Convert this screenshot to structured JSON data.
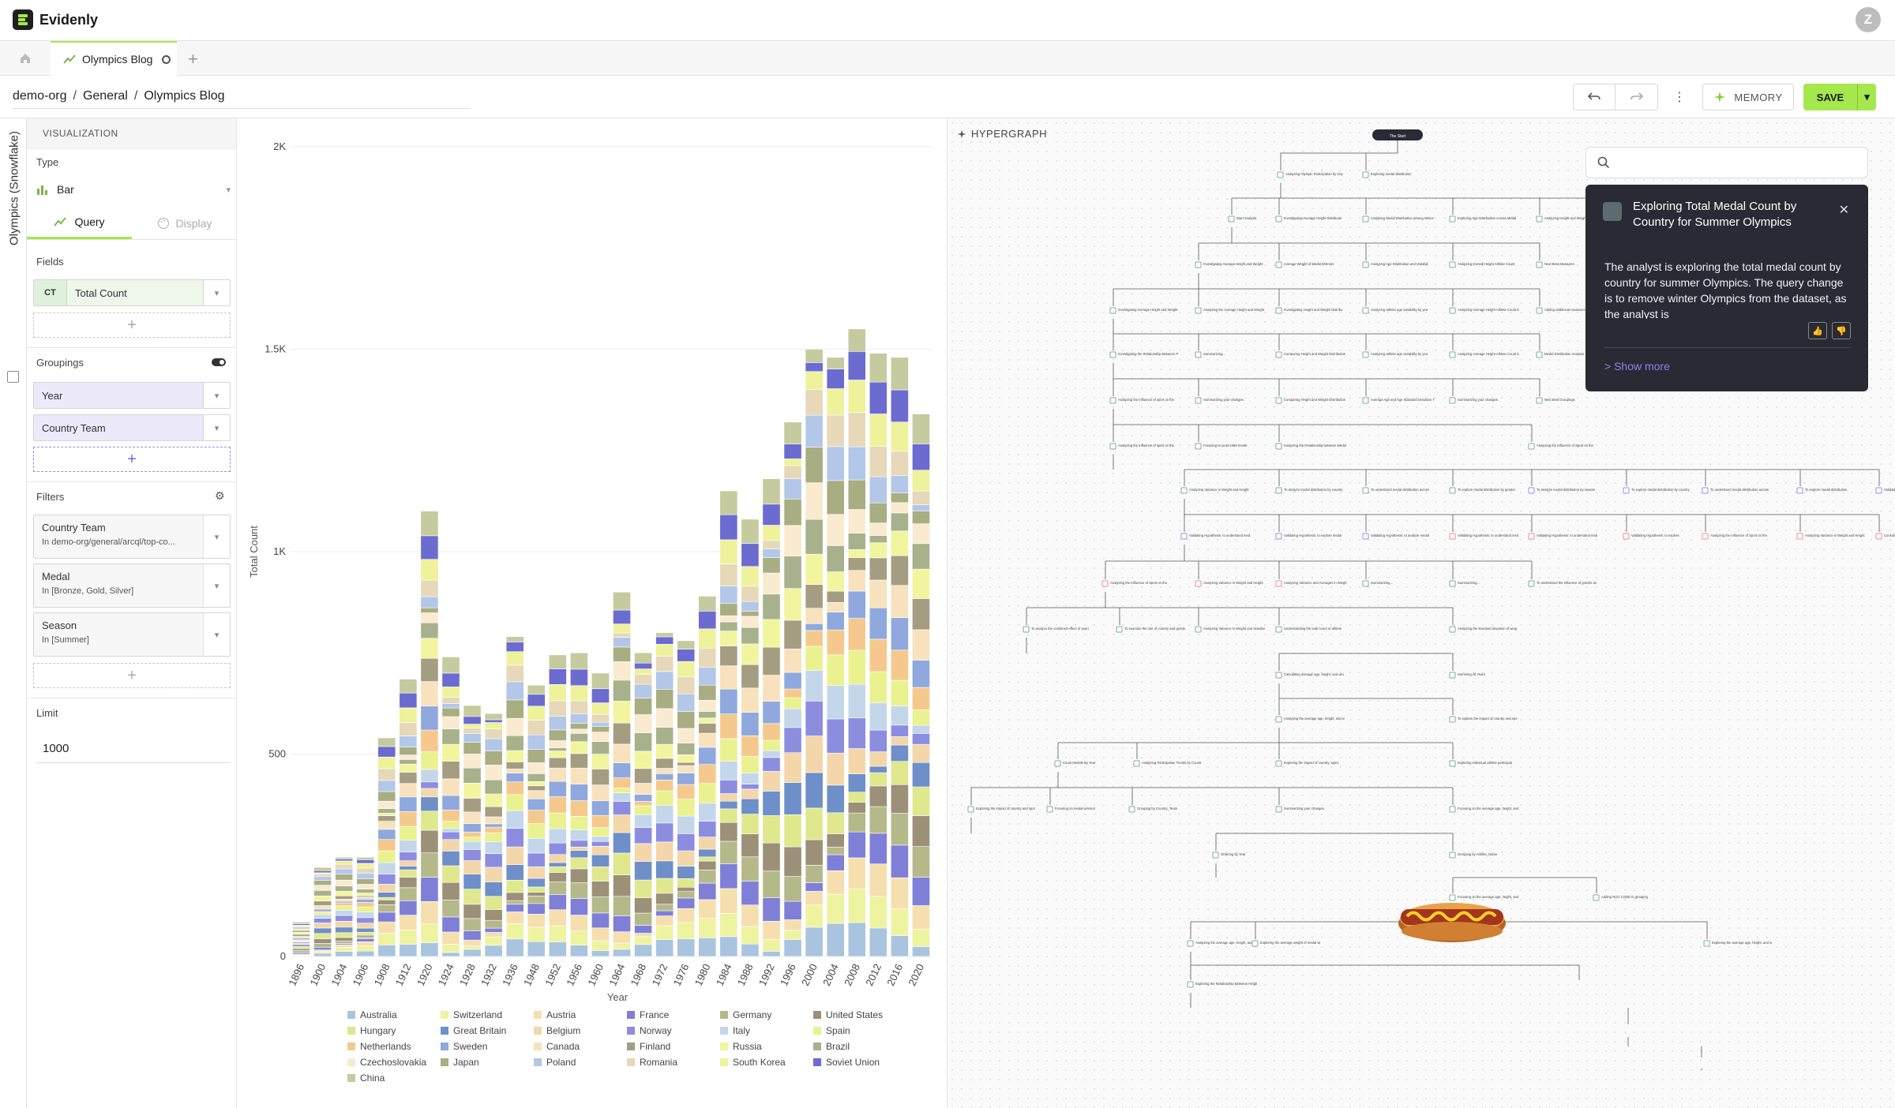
{
  "app": {
    "name": "Evidenly",
    "user_initial": "Z"
  },
  "tabs": [
    {
      "label": "Olympics Blog"
    }
  ],
  "breadcrumb": [
    "demo-org",
    "General",
    "Olympics Blog"
  ],
  "toolbar": {
    "memory_label": "MEMORY",
    "save_label": "SAVE"
  },
  "rail": {
    "label": "Olympics (Snowflake)"
  },
  "panel": {
    "section": "VISUALIZATION",
    "type_label": "Type",
    "type_value": "Bar",
    "query_tab": "Query",
    "display_tab": "Display",
    "fields_label": "Fields",
    "field_badge": "CT",
    "field_value": "Total Count",
    "groupings_label": "Groupings",
    "groupings": [
      "Year",
      "Country Team"
    ],
    "filters_label": "Filters",
    "filters": [
      {
        "name": "Country Team",
        "value": "In demo-org/general/arcql/top-co..."
      },
      {
        "name": "Medal",
        "value": "In [Bronze, Gold, Silver]"
      },
      {
        "name": "Season",
        "value": "In [Summer]"
      }
    ],
    "limit_label": "Limit",
    "limit_value": "1000"
  },
  "hypergraph": {
    "title": "HYPERGRAPH",
    "card_title": "Exploring Total Medal Count by Country for Summer Olympics",
    "card_text": "The analyst is exploring the total medal count by country for summer Olympics. The query change is to remove winter Olympics from the dataset, as the analyst is",
    "show_more": "> Show more",
    "root_label": "The Start",
    "nodes": [
      "Analyzing Olympic Participation by City",
      "Exploring medal distribution",
      "Start Analysis",
      "Investigating Average Height Distribution Across Medal",
      "Analyzing Medal Distribution among Winners",
      "Exploring Age Distribution Across Medal Types",
      "Analyzing Height and Weight Performance",
      "Medal Distribution Analysis",
      "Investigating Average Height and Weight Distribution Across",
      "Average Weight of Medal Winners",
      "Analyzing Age Distribution and Variability Across Medal Types",
      "Analyzing Overall Height Athlete Count",
      "Next Best Measures",
      "Investigating Average Height and Weight Distribution Across",
      "Analyzing the Average Height and Weight of All Athletes",
      "Investigating Height and Weight Distribution in Tug Of",
      "Analyzing athlete age variability by year and medal category",
      "Analyzing Average Height Athlete Count by Medal",
      "Adding additional measures",
      "Investigating the Relationship Between Physical Attributes",
      "Summarizing...",
      "Comparing Height and Weight Distribution in 3x3 Basketball",
      "Analyzing athlete age variability by year and medal category",
      "Analyzing Average Height Athlete Count by Medal",
      "Medal Distribution Analysis",
      "Analyzing the influence of sport on the relationship between",
      "Summarizing your changes.",
      "Comparing Height and Weight Distribution in Badminton",
      "Average Age and Age Standard Deviation Trends Across the",
      "Summarizing your changes.",
      "Next Best Groupings",
      "Analyzing the influence of sport on the relationship between",
      "Focusing on post-1980 trends",
      "Analyzing the Relationship between Medal Count and",
      "Analyzing the Influence of Sport on the Relationship Between",
      "Analyzing Variance in Weight and Height Over Time",
      "To analyze medal distribution by country",
      "To understand medal distribution across different",
      "To explore medal distribution by gender",
      "To analyze medal distribution by season",
      "To explore medal distribution by country",
      "To understand medal distribution across different",
      "To explore medal distribution",
      "Validating Hypothesis: to analyze medal distribution by",
      "Validating Hypothesis: to understand medal distribution",
      "Validating Hypothesis: to explore medal distribution by",
      "Validating Hypothesis: to analyze medal distribution by",
      "Validating Hypothesis: to understand medal distribution",
      "Validating Hypothesis: to understand medal distribution",
      "Validating Hypothesis: to explore",
      "Analyzing the Influence of Sport on the Relationship Between",
      "Analyzing Variance in Weight and Height Over Time",
      "Consolidated Analysis",
      "Analyzing the Influence of Sport on the Relationship Between",
      "Analyzing Variance in Weight and Height Over Time",
      "Analyzing Variance and Averages in Weight and Height",
      "Summarizing...",
      "Summarizing...",
      "To understand the influence of gender and season on medal",
      "To analyze the combined effect of sport and season on medal",
      "To examine the role of country and gender in medal",
      "Analyzing Variance in Weight and Standard Deviation of",
      "Understanding the total count of athletes by country and their",
      "Analyzing the standard deviation of weight and height",
      "Calculating average age, height, and weight of all",
      "Summing All Years",
      "Analyzing the average age, height, and weight of Olympic",
      "To explore the impact of country and sport on medal",
      "Count Medals By Year",
      "Analyzing Participation Trends by Country and Year",
      "Exploring the impact of country, sport, and sex on medal",
      "Exploring individual athlete participation in different and",
      "Exploring the impact of country and sport on medal distribution",
      "Focusing on medal winners",
      "Grouping by Country_Team",
      "Summarizing your changes.",
      "Focusing on the average age, height, and weight of medal",
      "Ordering by Year",
      "Grouping by Athlete_Name",
      "Focusing on the average age, height, and weight of",
      "Adding NOC CODE to grouping",
      "Analyzing the average age, height, and weight of athletes",
      "Exploring the average weight of medal winners",
      "Exploring the average age, height, and weight of athletes",
      "Exploring the Relationship Between Height and Success"
    ]
  },
  "chart_data": {
    "type": "bar",
    "stacked": true,
    "xlabel": "Year",
    "ylabel": "Total Count",
    "ylim": [
      0,
      2000
    ],
    "yticks": [
      "0",
      "500",
      "1K",
      "1.5K",
      "2K"
    ],
    "categories": [
      "1896",
      "1900",
      "1904",
      "1906",
      "1908",
      "1912",
      "1920",
      "1924",
      "1928",
      "1932",
      "1936",
      "1948",
      "1952",
      "1956",
      "1960",
      "1964",
      "1968",
      "1972",
      "1976",
      "1980",
      "1984",
      "1988",
      "1992",
      "1996",
      "2000",
      "2004",
      "2008",
      "2012",
      "2016",
      "2020"
    ],
    "totals": [
      85,
      220,
      245,
      245,
      540,
      685,
      1100,
      740,
      620,
      600,
      790,
      670,
      745,
      750,
      700,
      900,
      750,
      800,
      780,
      890,
      1150,
      1080,
      1180,
      1320,
      1500,
      1480,
      1550,
      1490,
      1480,
      1340
    ],
    "series": [
      {
        "name": "Australia",
        "color": "#a9c4df"
      },
      {
        "name": "Switzerland",
        "color": "#eef3a0"
      },
      {
        "name": "Austria",
        "color": "#f6dfae"
      },
      {
        "name": "France",
        "color": "#7f7fd8"
      },
      {
        "name": "Germany",
        "color": "#b5b98a"
      },
      {
        "name": "United States",
        "color": "#9c9079"
      },
      {
        "name": "Hungary",
        "color": "#dfe88c"
      },
      {
        "name": "Great Britain",
        "color": "#6e8fc8"
      },
      {
        "name": "Belgium",
        "color": "#f3d6aa"
      },
      {
        "name": "Norway",
        "color": "#8d8de0"
      },
      {
        "name": "Italy",
        "color": "#c4d6ea"
      },
      {
        "name": "Spain",
        "color": "#e9f28e"
      },
      {
        "name": "Netherlands",
        "color": "#f5c98e"
      },
      {
        "name": "Sweden",
        "color": "#8fa9de"
      },
      {
        "name": "Canada",
        "color": "#f7e2bd"
      },
      {
        "name": "Finland",
        "color": "#a59d82"
      },
      {
        "name": "Russia",
        "color": "#f1f59e"
      },
      {
        "name": "Brazil",
        "color": "#a7b28c"
      },
      {
        "name": "Czechoslovakia",
        "color": "#f9ead0"
      },
      {
        "name": "Japan",
        "color": "#a9ad82"
      },
      {
        "name": "Poland",
        "color": "#b3c7e8"
      },
      {
        "name": "Romania",
        "color": "#e6d8b8"
      },
      {
        "name": "South Korea",
        "color": "#eef29a"
      },
      {
        "name": "Soviet Union",
        "color": "#6b6bd0"
      },
      {
        "name": "China",
        "color": "#c5cb9e"
      }
    ]
  }
}
